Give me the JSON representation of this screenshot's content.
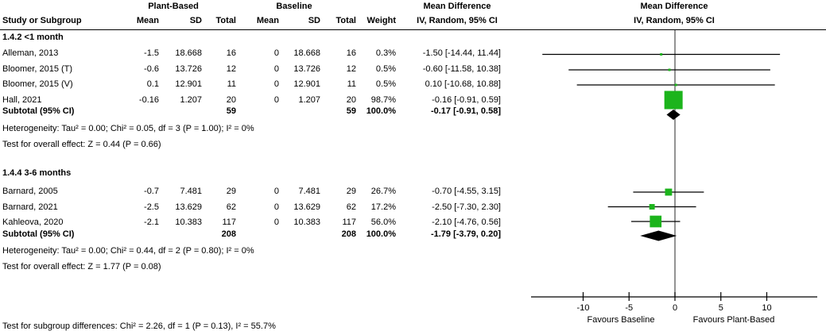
{
  "header": {
    "plant_based": "Plant-Based",
    "baseline": "Baseline",
    "md_text_col": {
      "line1": "Mean Difference",
      "line2": "IV, Random, 95% CI"
    },
    "md_plot_col": {
      "line1": "Mean Difference",
      "line2": "IV, Random, 95% CI"
    },
    "columns": {
      "study": "Study or Subgroup",
      "mean1": "Mean",
      "sd1": "SD",
      "total1": "Total",
      "mean2": "Mean",
      "sd2": "SD",
      "total2": "Total",
      "weight": "Weight"
    }
  },
  "groups": [
    {
      "title": "1.4.2 <1 month",
      "studies": [
        {
          "name": "Alleman, 2013",
          "mean1": "-1.5",
          "sd1": "18.668",
          "total1": "16",
          "mean2": "0",
          "sd2": "18.668",
          "total2": "16",
          "weight": "0.3%",
          "md_ci": "-1.50 [-14.44, 11.44]",
          "md": -1.5,
          "ci_low": -14.44,
          "ci_high": 11.44,
          "weight_pct": 0.3
        },
        {
          "name": "Bloomer, 2015 (T)",
          "mean1": "-0.6",
          "sd1": "13.726",
          "total1": "12",
          "mean2": "0",
          "sd2": "13.726",
          "total2": "12",
          "weight": "0.5%",
          "md_ci": "-0.60 [-11.58, 10.38]",
          "md": -0.6,
          "ci_low": -11.58,
          "ci_high": 10.38,
          "weight_pct": 0.5
        },
        {
          "name": "Bloomer, 2015 (V)",
          "mean1": "0.1",
          "sd1": "12.901",
          "total1": "11",
          "mean2": "0",
          "sd2": "12.901",
          "total2": "11",
          "weight": "0.5%",
          "md_ci": "0.10 [-10.68, 10.88]",
          "md": 0.1,
          "ci_low": -10.68,
          "ci_high": 10.88,
          "weight_pct": 0.5
        },
        {
          "name": "Hall, 2021",
          "mean1": "-0.16",
          "sd1": "1.207",
          "total1": "20",
          "mean2": "0",
          "sd2": "1.207",
          "total2": "20",
          "weight": "98.7%",
          "md_ci": "-0.16 [-0.91, 0.59]",
          "md": -0.16,
          "ci_low": -0.91,
          "ci_high": 0.59,
          "weight_pct": 98.7
        }
      ],
      "subtotal": {
        "label": "Subtotal (95% CI)",
        "total1": "59",
        "total2": "59",
        "weight": "100.0%",
        "md_ci": "-0.17 [-0.91, 0.58]",
        "md": -0.17,
        "ci_low": -0.91,
        "ci_high": 0.58
      },
      "heterogeneity": "Heterogeneity: Tau² = 0.00; Chi² = 0.05, df = 3 (P = 1.00); I² = 0%",
      "overall_effect": "Test for overall effect: Z = 0.44 (P = 0.66)"
    },
    {
      "title": "1.4.4 3-6 months",
      "studies": [
        {
          "name": "Barnard, 2005",
          "mean1": "-0.7",
          "sd1": "7.481",
          "total1": "29",
          "mean2": "0",
          "sd2": "7.481",
          "total2": "29",
          "weight": "26.7%",
          "md_ci": "-0.70 [-4.55, 3.15]",
          "md": -0.7,
          "ci_low": -4.55,
          "ci_high": 3.15,
          "weight_pct": 26.7
        },
        {
          "name": "Barnard, 2021",
          "mean1": "-2.5",
          "sd1": "13.629",
          "total1": "62",
          "mean2": "0",
          "sd2": "13.629",
          "total2": "62",
          "weight": "17.2%",
          "md_ci": "-2.50 [-7.30, 2.30]",
          "md": -2.5,
          "ci_low": -7.3,
          "ci_high": 2.3,
          "weight_pct": 17.2
        },
        {
          "name": "Kahleova, 2020",
          "mean1": "-2.1",
          "sd1": "10.383",
          "total1": "117",
          "mean2": "0",
          "sd2": "10.383",
          "total2": "117",
          "weight": "56.0%",
          "md_ci": "-2.10 [-4.76, 0.56]",
          "md": -2.1,
          "ci_low": -4.76,
          "ci_high": 0.56,
          "weight_pct": 56.0
        }
      ],
      "subtotal": {
        "label": "Subtotal (95% CI)",
        "total1": "208",
        "total2": "208",
        "weight": "100.0%",
        "md_ci": "-1.79 [-3.79, 0.20]",
        "md": -1.79,
        "ci_low": -3.79,
        "ci_high": 0.2
      },
      "heterogeneity": "Heterogeneity: Tau² = 0.00; Chi² = 0.44, df = 2 (P = 0.80); I² = 0%",
      "overall_effect": "Test for overall effect: Z = 1.77 (P = 0.08)"
    }
  ],
  "footer": {
    "subgroup_test": "Test for subgroup differences: Chi² = 2.26, df = 1 (P = 0.13), I² = 55.7%"
  },
  "axis": {
    "ticks": [
      "-10",
      "-5",
      "0",
      "5",
      "10"
    ],
    "tick_values": [
      -10,
      -5,
      0,
      5,
      10
    ],
    "favours_left": "Favours Baseline",
    "favours_right": "Favours Plant-Based"
  },
  "colors": {
    "marker": "#1CB41C",
    "diamond": "#000000",
    "ci_line": "#000000",
    "zero_line": "#595959",
    "text": "#000000",
    "background": "#FFFFFF"
  },
  "chart_data": {
    "type": "scatter",
    "subtype": "forest-plot-mean-difference",
    "title": "Mean Difference, IV, Random, 95% CI",
    "xlabel": "Mean Difference",
    "xlim": [
      -15.5,
      15.5
    ],
    "x_ticks": [
      -10,
      -5,
      0,
      5,
      10
    ],
    "grid": false,
    "annotations": [
      "Favours Baseline",
      "Favours Plant-Based"
    ],
    "series": [
      {
        "name": "1.4.2 <1 month",
        "points": [
          {
            "label": "Alleman, 2013",
            "x": -1.5,
            "ci95": [
              -14.44,
              11.44
            ],
            "weight_pct": 0.3
          },
          {
            "label": "Bloomer, 2015 (T)",
            "x": -0.6,
            "ci95": [
              -11.58,
              10.38
            ],
            "weight_pct": 0.5
          },
          {
            "label": "Bloomer, 2015 (V)",
            "x": 0.1,
            "ci95": [
              -10.68,
              10.88
            ],
            "weight_pct": 0.5
          },
          {
            "label": "Hall, 2021",
            "x": -0.16,
            "ci95": [
              -0.91,
              0.59
            ],
            "weight_pct": 98.7
          }
        ],
        "subtotal": {
          "x": -0.17,
          "ci95": [
            -0.91,
            0.58
          ],
          "n_plant": 59,
          "n_baseline": 59
        }
      },
      {
        "name": "1.4.4 3-6 months",
        "points": [
          {
            "label": "Barnard, 2005",
            "x": -0.7,
            "ci95": [
              -4.55,
              3.15
            ],
            "weight_pct": 26.7
          },
          {
            "label": "Barnard, 2021",
            "x": -2.5,
            "ci95": [
              -7.3,
              2.3
            ],
            "weight_pct": 17.2
          },
          {
            "label": "Kahleova, 2020",
            "x": -2.1,
            "ci95": [
              -4.76,
              0.56
            ],
            "weight_pct": 56.0
          }
        ],
        "subtotal": {
          "x": -1.79,
          "ci95": [
            -3.79,
            0.2
          ],
          "n_plant": 208,
          "n_baseline": 208
        }
      }
    ]
  }
}
